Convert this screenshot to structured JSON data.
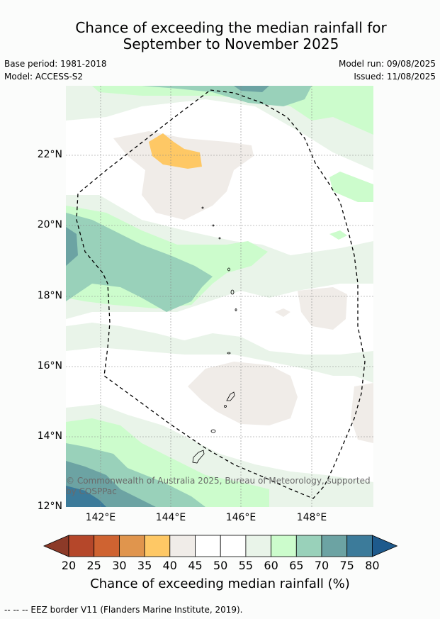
{
  "title_line1": "Chance of exceeding the median rainfall for",
  "title_line2": "September to November 2025",
  "meta": {
    "base_period": "Base period: 1981-2018",
    "model": "Model: ACCESS-S2",
    "model_run": "Model run: 09/08/2025",
    "issued": "Issued: 11/08/2025"
  },
  "map": {
    "lat_ticks": [
      "22°N",
      "20°N",
      "18°N",
      "16°N",
      "14°N",
      "12°N"
    ],
    "lon_ticks": [
      "142°E",
      "144°E",
      "146°E",
      "148°E"
    ],
    "copyright": "© Commonwealth of Australia 2025, Bureau of Meteorology, supported by COSPPac"
  },
  "colorbar": {
    "label": "Chance of exceeding median rainfall (%)",
    "ticks": [
      "20",
      "25",
      "30",
      "35",
      "40",
      "45",
      "50",
      "55",
      "60",
      "65",
      "70",
      "75",
      "80"
    ],
    "colors": [
      "#b5472a",
      "#cf6331",
      "#e0954d",
      "#fec865",
      "#f0ece8",
      "#ffffff",
      "#ffffff",
      "#e9f4e9",
      "#ccfccc",
      "#99d1ba",
      "#6ca3a3",
      "#3c7b9a"
    ],
    "low_extend_color": "#8c3a28",
    "high_extend_color": "#1e5a8c"
  },
  "footnote": "-- -- -- EEZ border V11 (Flanders Marine Institute, 2019)."
}
